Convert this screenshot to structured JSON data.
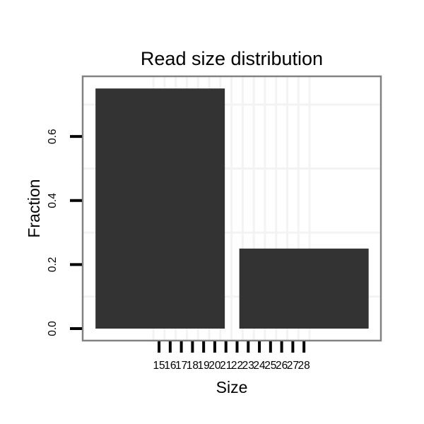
{
  "chart_data": {
    "type": "bar",
    "title": "Read size distribution",
    "xlabel": "Size",
    "ylabel": "Fraction",
    "x_ticks": [
      15,
      16,
      17,
      18,
      19,
      20,
      21,
      22,
      23,
      24,
      25,
      26,
      27,
      28
    ],
    "x_tick_labels": [
      "15",
      "16",
      "17",
      "18",
      "19",
      "20",
      "21",
      "22",
      "23",
      "24",
      "25",
      "26",
      "27",
      "28"
    ],
    "y_ticks": [
      0.0,
      0.2,
      0.4,
      0.6
    ],
    "y_tick_labels": [
      "0.0",
      "0.2",
      "0.4",
      "0.6"
    ],
    "xlim": [
      8.15,
      34.9
    ],
    "ylim": [
      -0.0375,
      0.788
    ],
    "values": [
      0.75,
      0.25
    ],
    "bars": [
      {
        "x_start": 9.3,
        "x_end": 20.9,
        "value": 0.75
      },
      {
        "x_start": 22.2,
        "x_end": 33.8,
        "value": 0.25
      }
    ],
    "grid": {
      "minor_x": [
        14.5,
        15.5,
        16.5,
        17.5,
        18.5,
        19.5,
        20.5,
        21.5,
        22.5,
        23.5,
        24.5,
        25.5,
        26.5,
        27.5,
        28.5
      ],
      "minor_y": [
        0.1,
        0.3,
        0.5,
        0.7
      ]
    },
    "legend": null,
    "colors": {
      "bar": "#333333",
      "panel_border": "#828282",
      "grid": "#f3f3f3",
      "tick": "#000000",
      "text": "#000000",
      "background": "#ffffff"
    }
  }
}
